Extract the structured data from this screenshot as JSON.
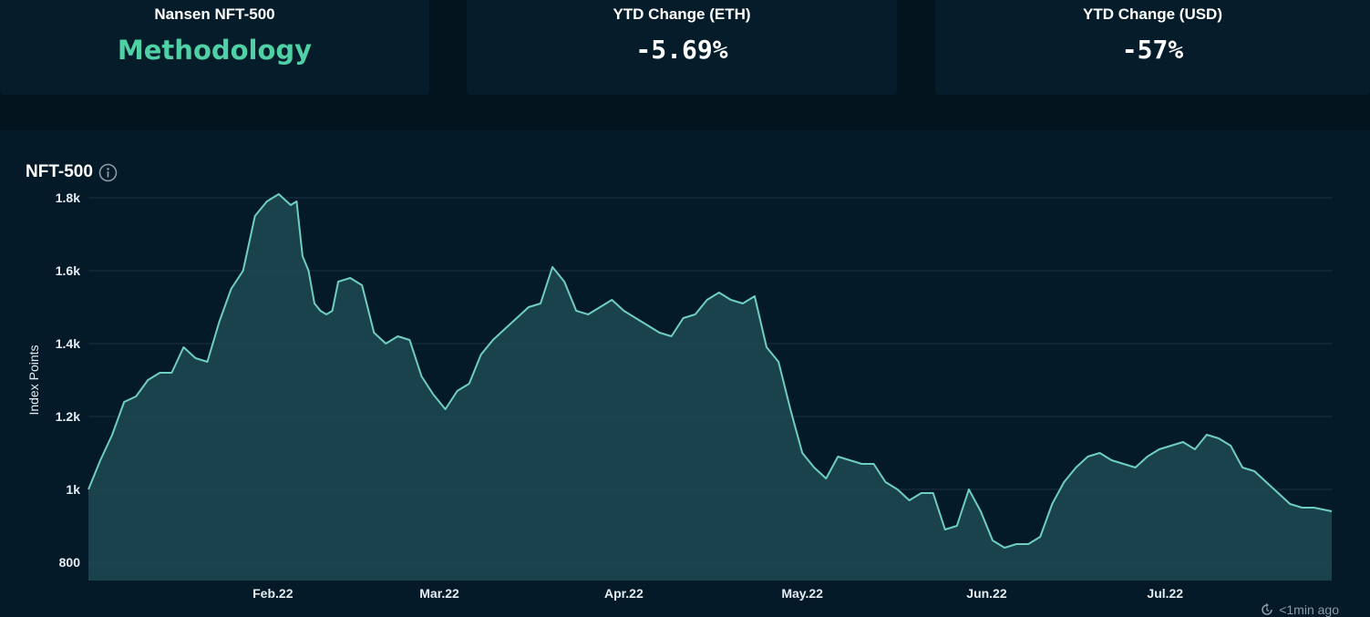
{
  "cards": [
    {
      "title": "Nansen NFT-500",
      "value": "Methodology"
    },
    {
      "title": "YTD Change (ETH)",
      "value": "-5.69%"
    },
    {
      "title": "YTD Change (USD)",
      "value": "-57%"
    }
  ],
  "chart": {
    "title": "NFT-500",
    "info_icon": "info-icon",
    "updated": "<1min ago",
    "refresh_icon": "refresh-icon"
  },
  "colors": {
    "line": "#6ecfc0",
    "area": "#1e4a52",
    "accent": "#4fd1a5",
    "background": "#051a28"
  },
  "chart_data": {
    "type": "area",
    "title": "NFT-500",
    "ylabel": "Index Points",
    "xlabel": "",
    "ylim": [
      750,
      1850
    ],
    "yticks": [
      {
        "value": 800,
        "label": "800"
      },
      {
        "value": 1000,
        "label": "1k"
      },
      {
        "value": 1200,
        "label": "1.2k"
      },
      {
        "value": 1400,
        "label": "1.4k"
      },
      {
        "value": 1600,
        "label": "1.6k"
      },
      {
        "value": 1800,
        "label": "1.8k"
      }
    ],
    "xrange": [
      "2022-01-01",
      "2022-07-29"
    ],
    "xticks": [
      {
        "date": "2022-02-01",
        "label": "Feb.22"
      },
      {
        "date": "2022-03-01",
        "label": "Mar.22"
      },
      {
        "date": "2022-04-01",
        "label": "Apr.22"
      },
      {
        "date": "2022-05-01",
        "label": "May.22"
      },
      {
        "date": "2022-06-01",
        "label": "Jun.22"
      },
      {
        "date": "2022-07-01",
        "label": "Jul.22"
      }
    ],
    "grid": true,
    "series": [
      {
        "x": [
          "2022-01-01",
          "2022-01-03",
          "2022-01-05",
          "2022-01-07",
          "2022-01-09",
          "2022-01-11",
          "2022-01-13",
          "2022-01-15",
          "2022-01-17",
          "2022-01-19",
          "2022-01-21",
          "2022-01-23",
          "2022-01-25",
          "2022-01-27",
          "2022-01-29",
          "2022-01-31",
          "2022-02-02",
          "2022-02-04",
          "2022-02-05",
          "2022-02-06",
          "2022-02-07",
          "2022-02-08",
          "2022-02-09",
          "2022-02-10",
          "2022-02-11",
          "2022-02-12",
          "2022-02-14",
          "2022-02-16",
          "2022-02-18",
          "2022-02-20",
          "2022-02-22",
          "2022-02-24",
          "2022-02-26",
          "2022-02-28",
          "2022-03-02",
          "2022-03-04",
          "2022-03-06",
          "2022-03-08",
          "2022-03-10",
          "2022-03-12",
          "2022-03-14",
          "2022-03-16",
          "2022-03-18",
          "2022-03-20",
          "2022-03-22",
          "2022-03-24",
          "2022-03-26",
          "2022-03-28",
          "2022-03-30",
          "2022-04-01",
          "2022-04-03",
          "2022-04-05",
          "2022-04-07",
          "2022-04-09",
          "2022-04-11",
          "2022-04-13",
          "2022-04-15",
          "2022-04-17",
          "2022-04-19",
          "2022-04-21",
          "2022-04-23",
          "2022-04-25",
          "2022-04-27",
          "2022-04-29",
          "2022-05-01",
          "2022-05-03",
          "2022-05-05",
          "2022-05-07",
          "2022-05-09",
          "2022-05-11",
          "2022-05-13",
          "2022-05-15",
          "2022-05-17",
          "2022-05-19",
          "2022-05-21",
          "2022-05-23",
          "2022-05-25",
          "2022-05-27",
          "2022-05-29",
          "2022-05-31",
          "2022-06-02",
          "2022-06-04",
          "2022-06-06",
          "2022-06-08",
          "2022-06-10",
          "2022-06-12",
          "2022-06-14",
          "2022-06-16",
          "2022-06-18",
          "2022-06-20",
          "2022-06-22",
          "2022-06-24",
          "2022-06-26",
          "2022-06-28",
          "2022-06-30",
          "2022-07-02",
          "2022-07-04",
          "2022-07-06",
          "2022-07-08",
          "2022-07-10",
          "2022-07-12",
          "2022-07-14",
          "2022-07-16",
          "2022-07-18",
          "2022-07-20",
          "2022-07-22",
          "2022-07-24",
          "2022-07-26",
          "2022-07-29"
        ],
        "values": [
          1000,
          1080,
          1150,
          1240,
          1255,
          1300,
          1320,
          1320,
          1390,
          1360,
          1350,
          1460,
          1550,
          1600,
          1750,
          1790,
          1810,
          1780,
          1790,
          1640,
          1600,
          1510,
          1490,
          1480,
          1490,
          1570,
          1580,
          1560,
          1430,
          1400,
          1420,
          1410,
          1310,
          1260,
          1220,
          1270,
          1290,
          1370,
          1410,
          1440,
          1470,
          1500,
          1510,
          1610,
          1570,
          1490,
          1480,
          1500,
          1520,
          1490,
          1470,
          1450,
          1430,
          1420,
          1470,
          1480,
          1520,
          1540,
          1520,
          1510,
          1530,
          1390,
          1350,
          1220,
          1100,
          1060,
          1030,
          1090,
          1080,
          1070,
          1070,
          1020,
          1000,
          970,
          990,
          990,
          890,
          900,
          1000,
          940,
          860,
          840,
          850,
          850,
          870,
          960,
          1020,
          1060,
          1090,
          1100,
          1080,
          1070,
          1060,
          1090,
          1110,
          1120,
          1130,
          1110,
          1150,
          1140,
          1120,
          1060,
          1050,
          1020,
          990,
          960,
          950,
          950,
          940
        ],
        "color": "#6ecfc0"
      }
    ]
  }
}
